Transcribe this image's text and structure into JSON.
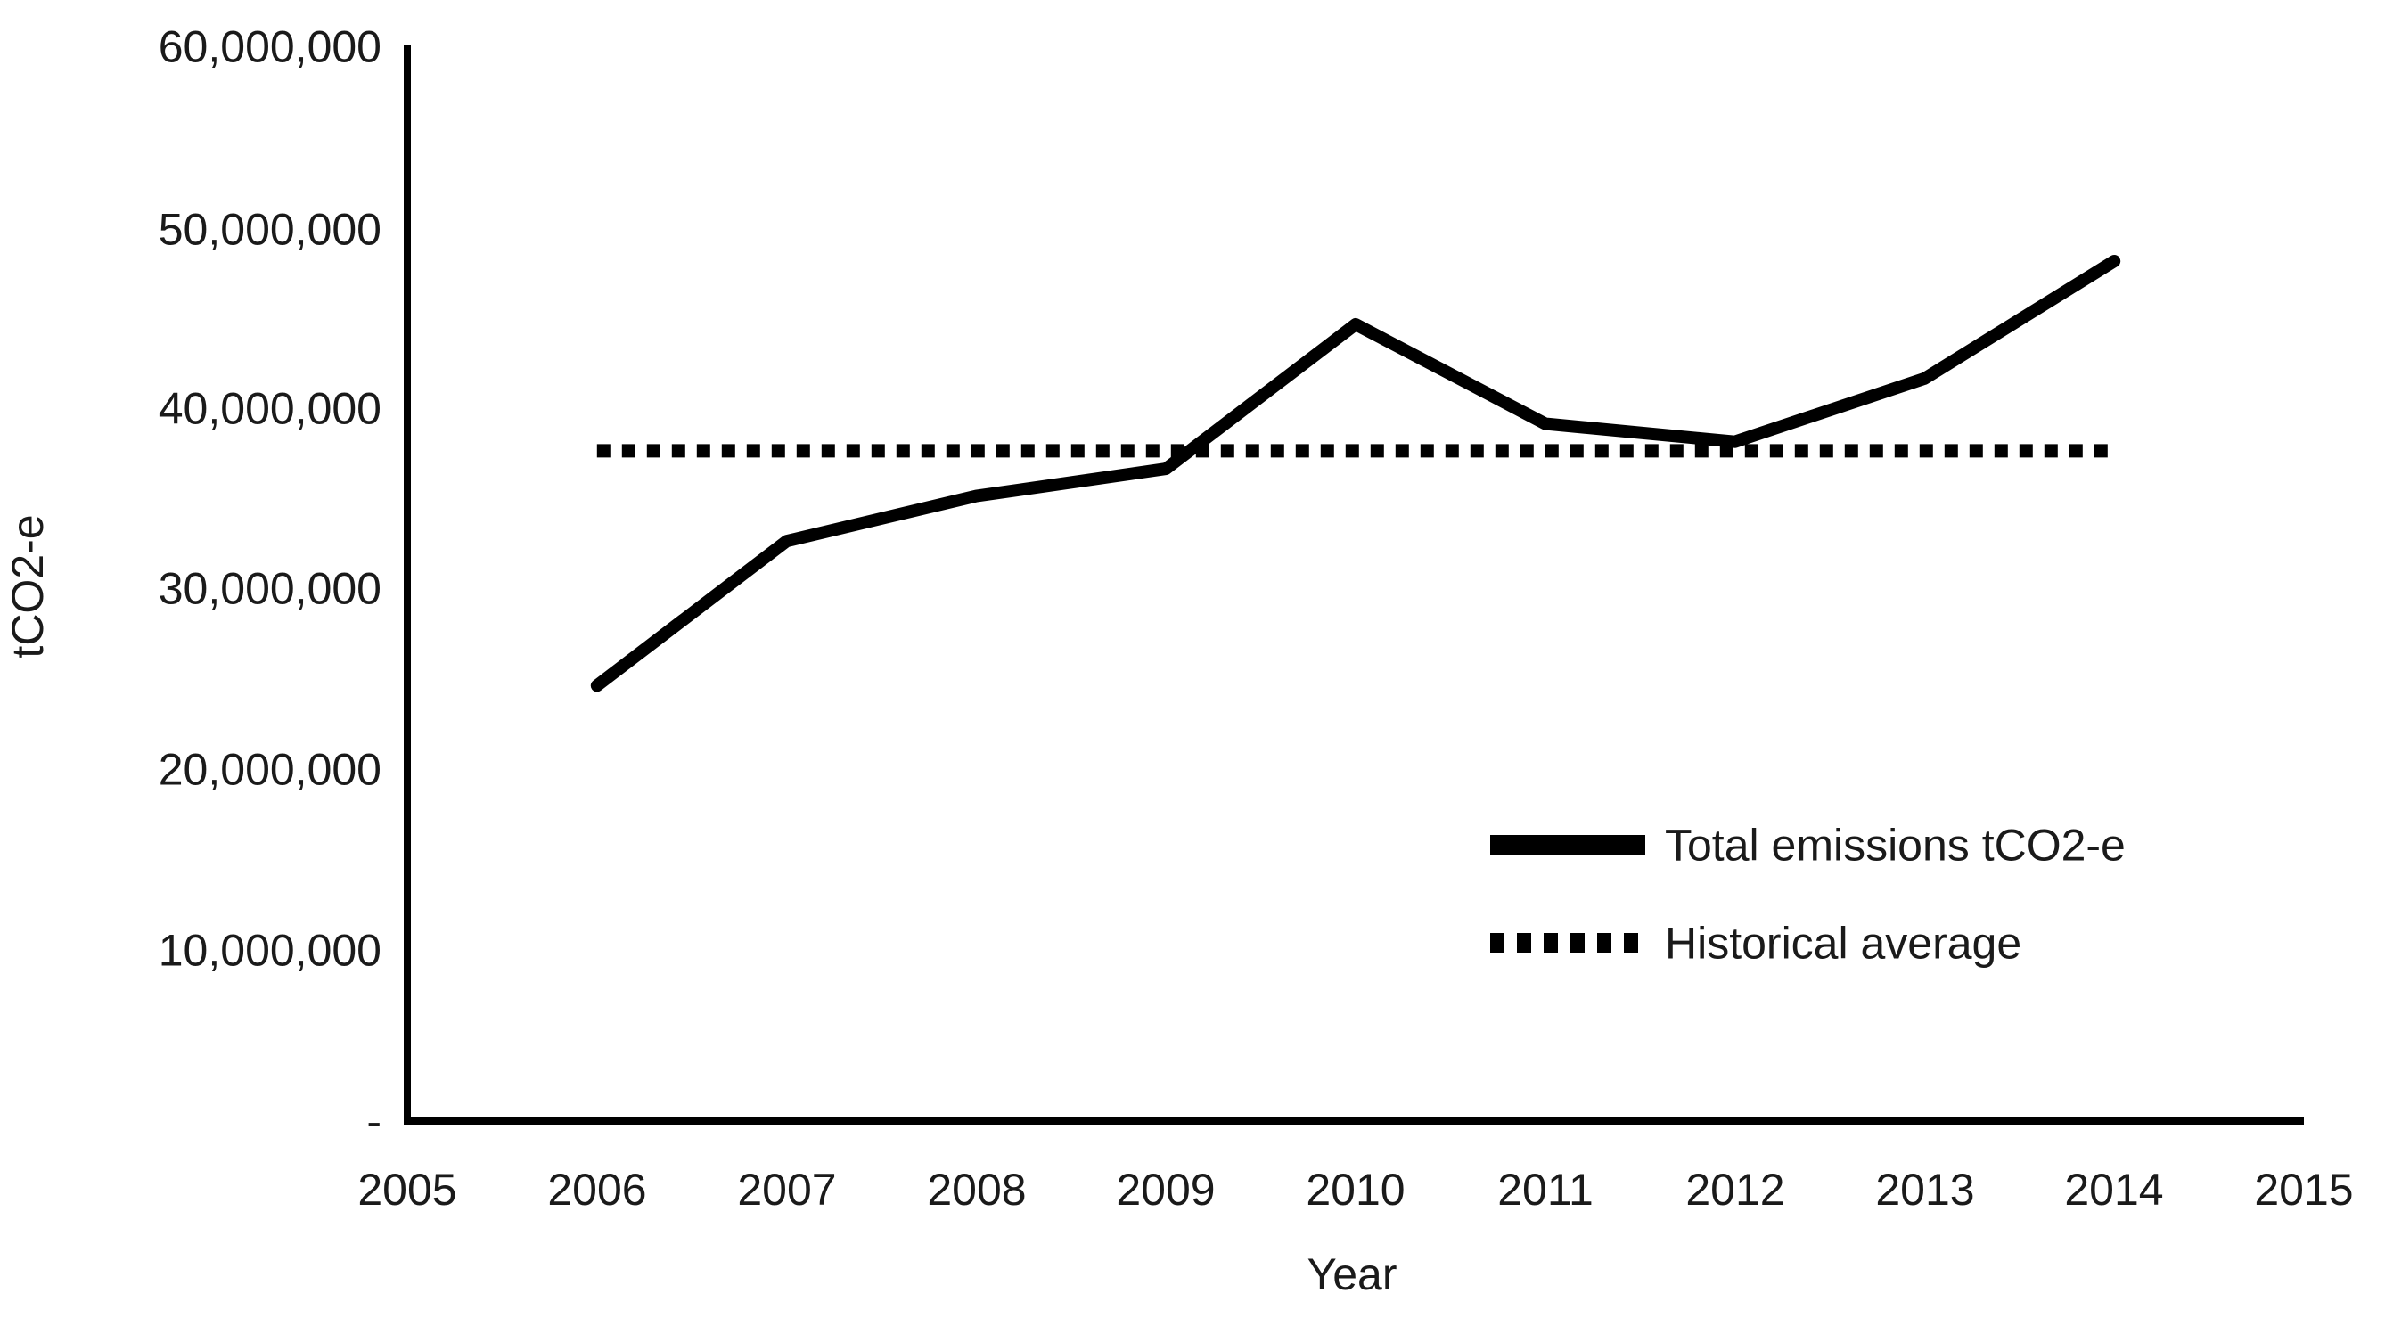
{
  "chart_data": {
    "type": "line",
    "title": "",
    "xlabel": "Year",
    "ylabel": "tCO2-e",
    "xlim": [
      2005,
      2015
    ],
    "ylim": [
      0,
      60000000
    ],
    "grid": false,
    "legend_position": "center-right-inside",
    "x_ticks": [
      "2005",
      "2006",
      "2007",
      "2008",
      "2009",
      "2010",
      "2011",
      "2012",
      "2013",
      "2014",
      "2015"
    ],
    "y_ticks": [
      "60,000,000",
      "50,000,000",
      "40,000,000",
      "30,000,000",
      "20,000,000",
      "10,000,000",
      "-"
    ],
    "series": [
      {
        "name": "Total emissions tCO2-e",
        "style": "solid",
        "color": "#000000",
        "x": [
          2006,
          2007,
          2008,
          2009,
          2010,
          2011,
          2012,
          2013,
          2014
        ],
        "values": [
          24500000,
          32500000,
          35000000,
          36500000,
          44500000,
          39000000,
          38000000,
          41500000,
          48000000
        ]
      },
      {
        "name": "Historical average",
        "style": "dotted",
        "color": "#000000",
        "x": [
          2006,
          2014
        ],
        "values": [
          37500000,
          37500000
        ]
      }
    ]
  }
}
